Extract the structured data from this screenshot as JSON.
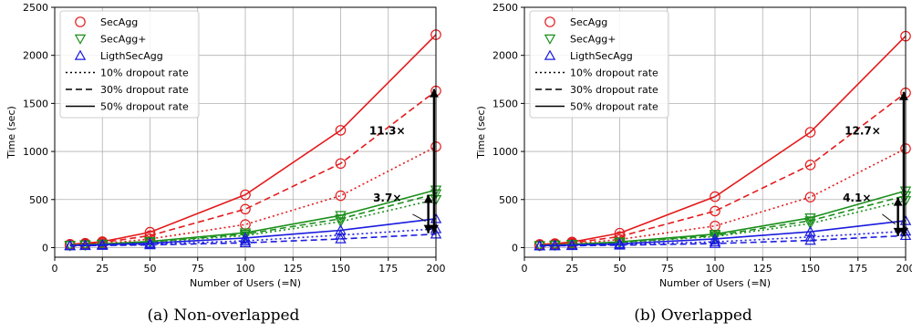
{
  "chart_data": [
    {
      "type": "line",
      "caption": "(a) Non-overlapped",
      "xlabel": "Number of Users (=N)",
      "ylabel": "Time (sec)",
      "xlim": [
        0,
        200
      ],
      "ylim": [
        -100,
        2500
      ],
      "xticks": [
        0,
        25,
        50,
        75,
        100,
        125,
        150,
        175,
        200
      ],
      "yticks": [
        0,
        500,
        1000,
        1500,
        2000,
        2500
      ],
      "grid": true,
      "legend_position": "top-left",
      "x": [
        8,
        16,
        25,
        50,
        100,
        150,
        200
      ],
      "protocols": [
        {
          "name": "SecAgg",
          "marker": "circle",
          "color": "#e41a1c"
        },
        {
          "name": "SecAgg+",
          "marker": "triangle-down",
          "color": "#1a8f1a"
        },
        {
          "name": "LigthSecAgg",
          "marker": "triangle-up",
          "color": "#1a1adf"
        }
      ],
      "dropout_styles": [
        {
          "name": "10% dropout rate",
          "dash": "dotted"
        },
        {
          "name": "30% dropout rate",
          "dash": "dashed"
        },
        {
          "name": "50% dropout rate",
          "dash": "solid"
        }
      ],
      "series": [
        {
          "protocol": 0,
          "dropout": 0,
          "values": [
            25,
            30,
            40,
            90,
            240,
            540,
            1050
          ]
        },
        {
          "protocol": 0,
          "dropout": 1,
          "values": [
            30,
            38,
            52,
            125,
            400,
            875,
            1630
          ]
        },
        {
          "protocol": 0,
          "dropout": 2,
          "values": [
            35,
            45,
            62,
            160,
            550,
            1220,
            2215
          ]
        },
        {
          "protocol": 1,
          "dropout": 0,
          "values": [
            22,
            27,
            33,
            55,
            125,
            270,
            500
          ]
        },
        {
          "protocol": 1,
          "dropout": 1,
          "values": [
            23,
            28,
            35,
            60,
            140,
            300,
            560
          ]
        },
        {
          "protocol": 1,
          "dropout": 2,
          "values": [
            24,
            30,
            38,
            65,
            155,
            335,
            600
          ]
        },
        {
          "protocol": 2,
          "dropout": 0,
          "values": [
            20,
            22,
            25,
            35,
            70,
            130,
            195
          ]
        },
        {
          "protocol": 2,
          "dropout": 1,
          "values": [
            18,
            20,
            22,
            28,
            50,
            90,
            140
          ]
        },
        {
          "protocol": 2,
          "dropout": 2,
          "values": [
            22,
            25,
            30,
            45,
            100,
            180,
            300
          ]
        }
      ],
      "annotations": [
        {
          "text": "11.3×",
          "x": 199,
          "y_from": 150,
          "y_to": 1650,
          "label_x": 184,
          "label_y": 1175
        },
        {
          "text": "3.7×",
          "x": 196,
          "y_from": 150,
          "y_to": 550,
          "label_x": 182,
          "label_y": 480
        }
      ]
    },
    {
      "type": "line",
      "caption": "(b) Overlapped",
      "xlabel": "Number of Users (=N)",
      "ylabel": "Time (sec)",
      "xlim": [
        0,
        200
      ],
      "ylim": [
        -100,
        2500
      ],
      "xticks": [
        0,
        25,
        50,
        75,
        100,
        125,
        150,
        175,
        200
      ],
      "yticks": [
        0,
        500,
        1000,
        1500,
        2000,
        2500
      ],
      "grid": true,
      "legend_position": "top-left",
      "x": [
        8,
        16,
        25,
        50,
        100,
        150,
        200
      ],
      "protocols": [
        {
          "name": "SecAgg",
          "marker": "circle",
          "color": "#e41a1c"
        },
        {
          "name": "SecAgg+",
          "marker": "triangle-down",
          "color": "#1a8f1a"
        },
        {
          "name": "LigthSecAgg",
          "marker": "triangle-up",
          "color": "#1a1adf"
        }
      ],
      "dropout_styles": [
        {
          "name": "10% dropout rate",
          "dash": "dotted"
        },
        {
          "name": "30% dropout rate",
          "dash": "dashed"
        },
        {
          "name": "50% dropout rate",
          "dash": "solid"
        }
      ],
      "series": [
        {
          "protocol": 0,
          "dropout": 0,
          "values": [
            22,
            28,
            38,
            85,
            225,
            525,
            1030
          ]
        },
        {
          "protocol": 0,
          "dropout": 1,
          "values": [
            28,
            35,
            48,
            115,
            380,
            860,
            1610
          ]
        },
        {
          "protocol": 0,
          "dropout": 2,
          "values": [
            33,
            42,
            58,
            150,
            530,
            1200,
            2200
          ]
        },
        {
          "protocol": 1,
          "dropout": 0,
          "values": [
            20,
            25,
            30,
            50,
            115,
            250,
            490
          ]
        },
        {
          "protocol": 1,
          "dropout": 1,
          "values": [
            21,
            26,
            32,
            55,
            125,
            280,
            540
          ]
        },
        {
          "protocol": 1,
          "dropout": 2,
          "values": [
            22,
            28,
            35,
            60,
            140,
            310,
            590
          ]
        },
        {
          "protocol": 2,
          "dropout": 0,
          "values": [
            18,
            20,
            23,
            32,
            60,
            110,
            170
          ]
        },
        {
          "protocol": 2,
          "dropout": 1,
          "values": [
            16,
            18,
            20,
            25,
            42,
            75,
            125
          ]
        },
        {
          "protocol": 2,
          "dropout": 2,
          "values": [
            20,
            23,
            27,
            40,
            90,
            165,
            280
          ]
        }
      ],
      "annotations": [
        {
          "text": "12.7×",
          "x": 199,
          "y_from": 120,
          "y_to": 1620,
          "label_x": 187,
          "label_y": 1175
        },
        {
          "text": "4.1×",
          "x": 196,
          "y_from": 120,
          "y_to": 520,
          "label_x": 182,
          "label_y": 480
        }
      ]
    }
  ]
}
